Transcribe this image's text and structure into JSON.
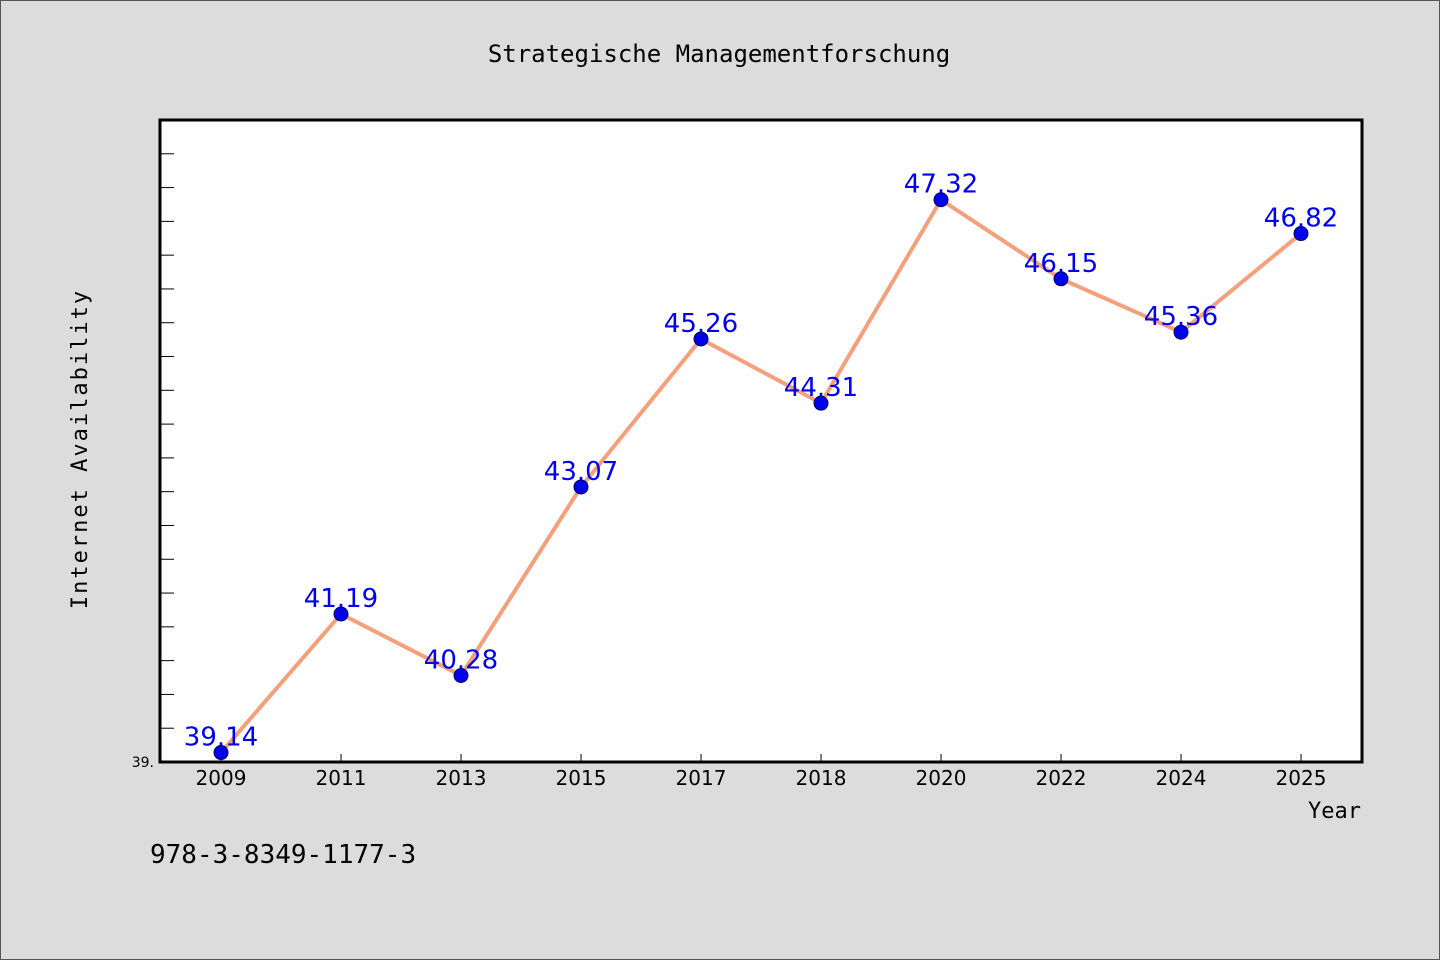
{
  "figure": {
    "background": "#dcdcdc",
    "footer_text": "978-3-8349-1177-3"
  },
  "chart_data": {
    "type": "line",
    "title": "Strategische Managementforschung",
    "xlabel": "Year",
    "ylabel": "Internet Availability",
    "categories": [
      "2009",
      "2011",
      "2013",
      "2015",
      "2017",
      "2018",
      "2020",
      "2022",
      "2024",
      "2025"
    ],
    "series": [
      {
        "values": [
          39.14,
          41.19,
          40.28,
          43.07,
          45.26,
          44.31,
          47.32,
          46.15,
          45.36,
          46.82
        ],
        "data_labels": [
          "39.14",
          "41.19",
          "40.28",
          "43.07",
          "45.26",
          "44.31",
          "47.32",
          "46.15",
          "45.36",
          "46.82"
        ],
        "line_color": "#f4a07c",
        "marker_color": "#0000ee"
      }
    ],
    "ylim": [
      39.0,
      48.5
    ],
    "ytick_label_visible": "39.",
    "data_label_color": "#0000ee",
    "plot_background": "#ffffff",
    "grid": false
  }
}
